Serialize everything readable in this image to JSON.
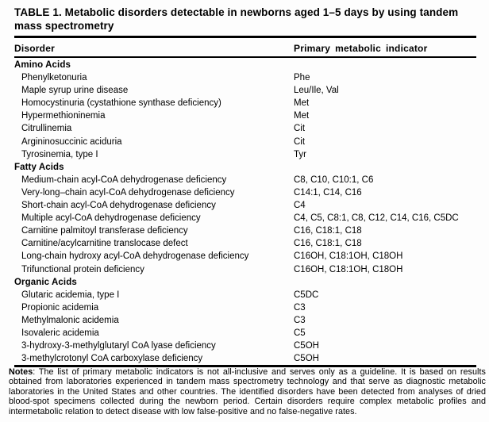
{
  "table": {
    "title": "TABLE 1. Metabolic disorders detectable in newborns aged 1–5 days by using tandem mass spectrometry",
    "columns": [
      "Disorder",
      "Primary metabolic indicator"
    ],
    "sections": [
      {
        "name": "Amino Acids",
        "rows": [
          {
            "disorder": "Phenylketonuria",
            "indicator": "Phe"
          },
          {
            "disorder": "Maple syrup urine disease",
            "indicator": "Leu/Ile, Val"
          },
          {
            "disorder": "Homocystinuria (cystathione synthase deficiency)",
            "indicator": "Met"
          },
          {
            "disorder": "Hypermethioninemia",
            "indicator": "Met"
          },
          {
            "disorder": "Citrullinemia",
            "indicator": "Cit"
          },
          {
            "disorder": "Argininosuccinic aciduria",
            "indicator": "Cit"
          },
          {
            "disorder": "Tyrosinemia, type I",
            "indicator": "Tyr"
          }
        ]
      },
      {
        "name": "Fatty Acids",
        "rows": [
          {
            "disorder": "Medium-chain acyl-CoA dehydrogenase deficiency",
            "indicator": "C8, C10, C10:1, C6"
          },
          {
            "disorder": "Very-long–chain acyl-CoA dehydrogenase deficiency",
            "indicator": "C14:1, C14, C16"
          },
          {
            "disorder": "Short-chain acyl-CoA dehydrogenase deficiency",
            "indicator": "C4"
          },
          {
            "disorder": "Multiple acyl-CoA dehydrogenase deficiency",
            "indicator": "C4, C5, C8:1, C8, C12, C14, C16, C5DC"
          },
          {
            "disorder": "Carnitine palmitoyl transferase deficiency",
            "indicator": "C16, C18:1, C18"
          },
          {
            "disorder": "Carnitine/acylcarnitine translocase defect",
            "indicator": "C16, C18:1, C18"
          },
          {
            "disorder": "Long-chain hydroxy acyl-CoA dehydrogenase deficiency",
            "indicator": "C16OH, C18:1OH, C18OH"
          },
          {
            "disorder": "Trifunctional protein deficiency",
            "indicator": "C16OH, C18:1OH, C18OH"
          }
        ]
      },
      {
        "name": "Organic Acids",
        "rows": [
          {
            "disorder": "Glutaric acidemia, type I",
            "indicator": "C5DC"
          },
          {
            "disorder": "Propionic acidemia",
            "indicator": "C3"
          },
          {
            "disorder": "Methylmalonic acidemia",
            "indicator": "C3"
          },
          {
            "disorder": "Isovaleric acidemia",
            "indicator": "C5"
          },
          {
            "disorder": "3-hydroxy-3-methylglutaryl CoA lyase deficiency",
            "indicator": "C5OH"
          },
          {
            "disorder": "3-methylcrotonyl CoA carboxylase deficiency",
            "indicator": "C5OH"
          }
        ]
      }
    ],
    "notes_label": "Notes",
    "notes_text": ": The list of primary metabolic indicators is not all-inclusive and serves only as a guideline. It is based on results obtained from laboratories experienced in tandem mass spectrometry technology and that serve as diagnos­tic metabolic laboratories in the United States and other countries. The identified disorders have been detected from analyses of dried blood-spot specimens collected during the newborn period. Certain disorders require complex metabolic profiles and intermetabolic relation to detect disease with low false-positive and no false-negative rates."
  }
}
